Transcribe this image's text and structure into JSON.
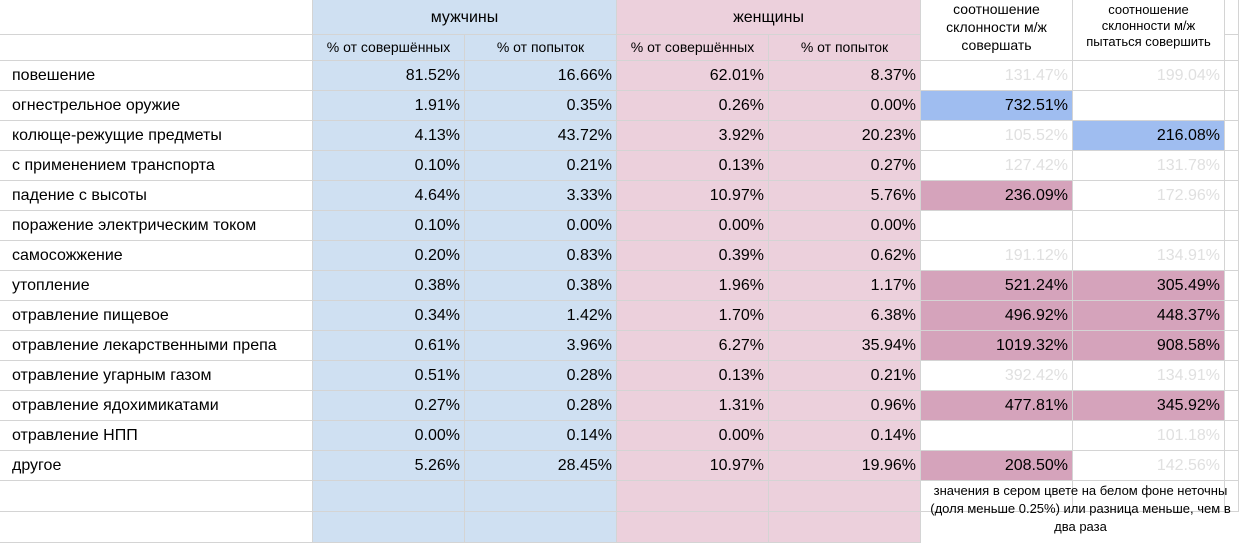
{
  "header": {
    "men": "мужчины",
    "women": "женщины",
    "ratio_commit": "соотношение склонности м/ж совершать",
    "ratio_attempt": "соотношение склонности м/ж пытаться совершить",
    "sub_completed": "% от совершённых",
    "sub_attempts": "% от попыток"
  },
  "rows": [
    {
      "label": "повешение",
      "m_c": "81.52%",
      "m_a": "16.66%",
      "w_c": "62.01%",
      "w_a": "8.37%",
      "r_c": "131.47%",
      "r_c_style": "grey",
      "r_a": "199.04%",
      "r_a_style": "grey"
    },
    {
      "label": "огнестрельное оружие",
      "m_c": "1.91%",
      "m_a": "0.35%",
      "w_c": "0.26%",
      "w_a": "0.00%",
      "r_c": "732.51%",
      "r_c_style": "hl-blue",
      "r_a": "",
      "r_a_style": ""
    },
    {
      "label": "колюще-режущие предметы",
      "m_c": "4.13%",
      "m_a": "43.72%",
      "w_c": "3.92%",
      "w_a": "20.23%",
      "r_c": "105.52%",
      "r_c_style": "grey",
      "r_a": "216.08%",
      "r_a_style": "hl-blue"
    },
    {
      "label": "с применением транспорта",
      "m_c": "0.10%",
      "m_a": "0.21%",
      "w_c": "0.13%",
      "w_a": "0.27%",
      "r_c": "127.42%",
      "r_c_style": "grey",
      "r_a": "131.78%",
      "r_a_style": "grey"
    },
    {
      "label": "падение с высоты",
      "m_c": "4.64%",
      "m_a": "3.33%",
      "w_c": "10.97%",
      "w_a": "5.76%",
      "r_c": "236.09%",
      "r_c_style": "hl-pink",
      "r_a": "172.96%",
      "r_a_style": "grey"
    },
    {
      "label": "поражение электрическим током",
      "m_c": "0.10%",
      "m_a": "0.00%",
      "w_c": "0.00%",
      "w_a": "0.00%",
      "r_c": "",
      "r_c_style": "",
      "r_a": "",
      "r_a_style": ""
    },
    {
      "label": "самосожжение",
      "m_c": "0.20%",
      "m_a": "0.83%",
      "w_c": "0.39%",
      "w_a": "0.62%",
      "r_c": "191.12%",
      "r_c_style": "grey",
      "r_a": "134.91%",
      "r_a_style": "grey"
    },
    {
      "label": "утопление",
      "m_c": "0.38%",
      "m_a": "0.38%",
      "w_c": "1.96%",
      "w_a": "1.17%",
      "r_c": "521.24%",
      "r_c_style": "hl-pink",
      "r_a": "305.49%",
      "r_a_style": "hl-pink"
    },
    {
      "label": "отравление пищевое",
      "m_c": "0.34%",
      "m_a": "1.42%",
      "w_c": "1.70%",
      "w_a": "6.38%",
      "r_c": "496.92%",
      "r_c_style": "hl-pink",
      "r_a": "448.37%",
      "r_a_style": "hl-pink"
    },
    {
      "label": "отравление лекарственными препа",
      "m_c": "0.61%",
      "m_a": "3.96%",
      "w_c": "6.27%",
      "w_a": "35.94%",
      "r_c": "1019.32%",
      "r_c_style": "hl-pink",
      "r_a": "908.58%",
      "r_a_style": "hl-pink"
    },
    {
      "label": "отравление угарным газом",
      "m_c": "0.51%",
      "m_a": "0.28%",
      "w_c": "0.13%",
      "w_a": "0.21%",
      "r_c": "392.42%",
      "r_c_style": "grey",
      "r_a": "134.91%",
      "r_a_style": "grey"
    },
    {
      "label": "отравление ядохимикатами",
      "m_c": "0.27%",
      "m_a": "0.28%",
      "w_c": "1.31%",
      "w_a": "0.96%",
      "r_c": "477.81%",
      "r_c_style": "hl-pink",
      "r_a": "345.92%",
      "r_a_style": "hl-pink"
    },
    {
      "label": "отравление НПП",
      "m_c": "0.00%",
      "m_a": "0.14%",
      "w_c": "0.00%",
      "w_a": "0.14%",
      "r_c": "",
      "r_c_style": "",
      "r_a": "101.18%",
      "r_a_style": "grey"
    },
    {
      "label": "другое",
      "m_c": "5.26%",
      "m_a": "28.45%",
      "w_c": "10.97%",
      "w_a": "19.96%",
      "r_c": "208.50%",
      "r_c_style": "hl-pink",
      "r_a": "142.56%",
      "r_a_style": "grey"
    }
  ],
  "note": "значения в сером цвете на белом фоне неточны (доля меньше 0.25%) или разница меньше, чем в два раза",
  "colors": {
    "men_bg": "#cfe0f2",
    "women_bg": "#ecd0dc",
    "highlight_blue": "#9fbdf0",
    "highlight_pink": "#d5a3bb",
    "grey_text": "#e0e0e0"
  }
}
